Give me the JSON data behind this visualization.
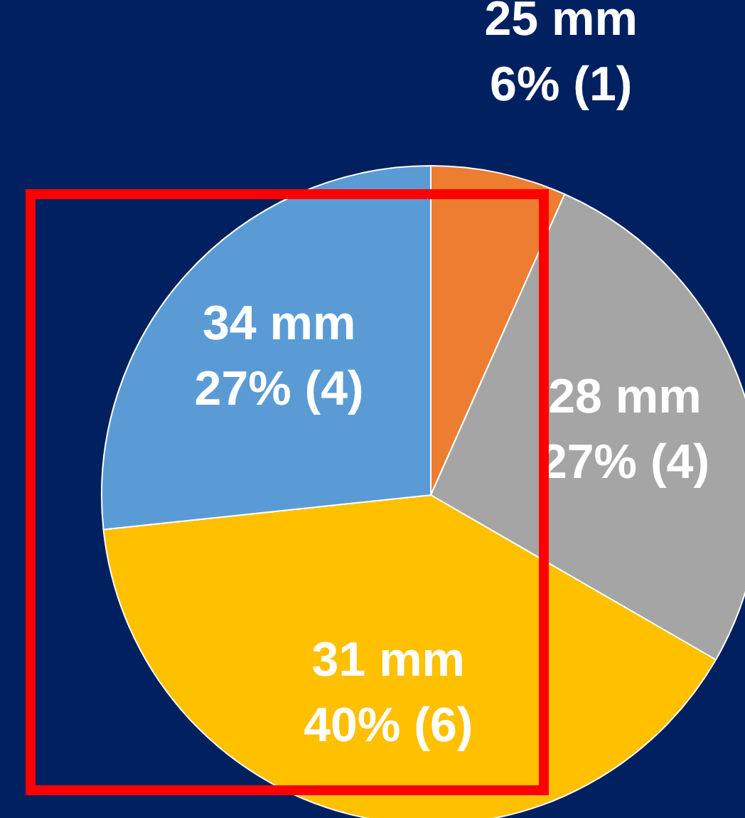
{
  "chart_data": {
    "type": "pie",
    "categories": [
      "25 mm",
      "28 mm",
      "31 mm",
      "34 mm"
    ],
    "values": [
      1,
      4,
      6,
      4
    ],
    "value_labels": [
      "6% (1)",
      "27% (4)",
      "40% (6)",
      "27% (4)"
    ],
    "colors": [
      "#ed7d31",
      "#a5a5a5",
      "#ffc000",
      "#5b9bd5"
    ],
    "legend": false
  }
}
